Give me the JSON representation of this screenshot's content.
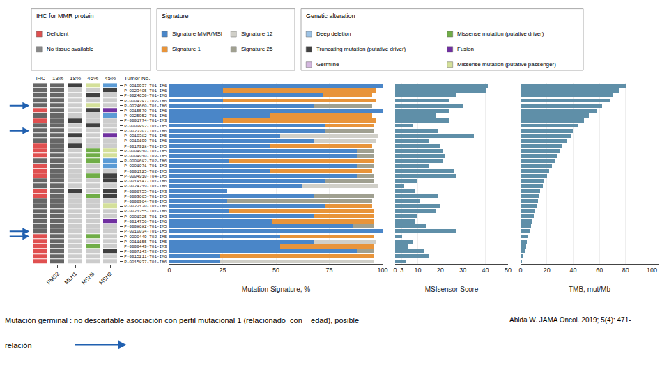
{
  "chart_data": [
    {
      "type": "tiles",
      "ylabel": "Tumor No.",
      "categories": [
        "P-0019937-T01-IM6",
        "P-0023405-T01-IM6",
        "P-0024650-T01-IM6",
        "P-0004387-T02-IM6",
        "P-0024660-T01-IM6",
        "P-0015570-T01-IM6",
        "P-0025952-T01-IM6",
        "P-0001774-T01-IM3",
        "P-0009892-T01-IM5",
        "P-0023307-T01-IM6",
        "P-0010382-T01-IM5",
        "P-0019199-T01-IM6",
        "P-0017928-T01-IM5",
        "P-0004910-T01-IM5",
        "P-0004910-T03-IM5",
        "P-0008682-T02-IM6",
        "P-0001071-T01-IM3",
        "P-0001325-T02-IM5",
        "P-0004910-T04-IM5",
        "P-0018147-T01-IM6",
        "P-0024219-T01-IM6",
        "P-0000755-T01-IM3",
        "P-0003665-T01-IM5",
        "P-0000964-T03-IM5",
        "P-0022120-T01-IM6",
        "P-0021355-T01-IM6",
        "P-0001325-T01-IM3",
        "P-0014756-T01-IM6",
        "P-0008682-T01-IM5",
        "P-0010034-T01-IM5",
        "P-0000449-T02-IM5",
        "P-0011155-T01-IM5",
        "P-0000449-T01-IM3",
        "P-0007143-T02-IM5",
        "P-0015211-T01-IM6",
        "P-0015837-T01-IM6"
      ],
      "columns": [
        {
          "name": "IHC",
          "label": null,
          "colors": [
            "#666666",
            "#666666",
            "#666666",
            "#666666",
            "#666666",
            "#e05050",
            "#666666",
            "#e05050",
            "#666666",
            "#666666",
            "#666666",
            "#666666",
            "#e05050",
            "#e05050",
            "#e05050",
            "#666666",
            "#e05050",
            "#e05050",
            "#e05050",
            "#666666",
            "#666666",
            "#e05050",
            "#e05050",
            "#666666",
            "#666666",
            "#666666",
            "#666666",
            "#666666",
            "#666666",
            "#666666",
            "#e05050",
            "#e05050",
            "#e05050",
            "#e05050",
            "#e05050",
            "#e05050"
          ]
        },
        {
          "name": "13%",
          "label": "PMS2",
          "colors": [
            "#666666",
            "#666666",
            "#666666",
            "#666666",
            "#666666",
            "#666666",
            "#666666",
            "#666666",
            "#666666",
            "#666666",
            "#666666",
            "#666666",
            "#666666",
            "#666666",
            "#666666",
            "#666666",
            "#666666",
            "#666666",
            "#666666",
            "#666666",
            "#666666",
            "#666666",
            "#666666",
            "#666666",
            "#666666",
            "#666666",
            "#666666",
            "#666666",
            "#666666",
            "#666666",
            "#666666",
            "#666666",
            "#666666",
            "#666666",
            "#666666",
            "#666666"
          ]
        },
        {
          "name": "18%",
          "label": "MLH1",
          "colors": [
            "#404040",
            "#cccccc",
            "#cccccc",
            "#cccccc",
            "#cccccc",
            "#cccccc",
            "#cccccc",
            "#404040",
            "#cccccc",
            "#cccccc",
            "#404040",
            "#cccccc",
            "#404040",
            "#cccccc",
            "#cccccc",
            "#cccccc",
            "#cccccc",
            "#cccccc",
            "#cccccc",
            "#cccccc",
            "#cccccc",
            "#404040",
            "#cccccc",
            "#cccccc",
            "#cccccc",
            "#cccccc",
            "#cccccc",
            "#cccccc",
            "#cccccc",
            "#cccccc",
            "#cccccc",
            "#cccccc",
            "#cccccc",
            "#cccccc",
            "#cccccc",
            "#cccccc"
          ]
        },
        {
          "name": "46%",
          "label": "MSH6",
          "colors": [
            "#d4e09a",
            "#cccccc",
            "#404040",
            "#cccccc",
            "#d4e09a",
            "#404040",
            "#cccccc",
            "#cccccc",
            "#404040",
            "#cccccc",
            "#cccccc",
            "#cccccc",
            "#cccccc",
            "#70ad47",
            "#70ad47",
            "#70ad47",
            "#cccccc",
            "#cccccc",
            "#70ad47",
            "#cccccc",
            "#cccccc",
            "#cccccc",
            "#70ad47",
            "#cccccc",
            "#cccccc",
            "#cccccc",
            "#cccccc",
            "#cccccc",
            "#cccccc",
            "#cccccc",
            "#70ad47",
            "#cccccc",
            "#70ad47",
            "#cccccc",
            "#cccccc",
            "#cccccc"
          ]
        },
        {
          "name": "45%",
          "label": "MSH2",
          "colors": [
            "#5b9bd5",
            "#404040",
            "#cccccc",
            "#cccccc",
            "#cccccc",
            "#7030a0",
            "#5b9bd5",
            "#cccccc",
            "#cccccc",
            "#cccccc",
            "#7030a0",
            "#cccccc",
            "#cccccc",
            "#d4e09a",
            "#d4e09a",
            "#5b9bd5",
            "#5b9bd5",
            "#cccccc",
            "#404040",
            "#404040",
            "#cccccc",
            "#404040",
            "#404040",
            "#cccccc",
            "#d4e09a",
            "#cccccc",
            "#cccccc",
            "#7030a0",
            "#cccccc",
            "#cccccc",
            "#cccccc",
            "#cccccc",
            "#cccccc",
            "#404040",
            "#cccccc",
            "#cccccc"
          ]
        }
      ],
      "key": [
        {
          "title": "IHC for MMR protein",
          "items": [
            {
              "name": "Deficient",
              "color": "#e05050"
            },
            {
              "name": "No tissue available",
              "color": "#888888"
            }
          ]
        },
        {
          "title": "Genetic alteration",
          "items": [
            {
              "name": "Deep deletion",
              "color": "#9dc3e6"
            },
            {
              "name": "Truncating mutation (putative driver)",
              "color": "#404040"
            },
            {
              "name": "Germline",
              "color": "#d5b8e0"
            },
            {
              "name": "Missense mutation (putative driver)",
              "color": "#70ad47"
            },
            {
              "name": "Fusion",
              "color": "#7030a0"
            },
            {
              "name": "Missense mutation (putative passenger)",
              "color": "#d4e09a"
            }
          ]
        }
      ],
      "arrows": {
        "rows": [
          "P-0024660-T01-IM6",
          "P-0023307-T01-IM6",
          "P-0010034-T01-IM5",
          "P-0000449-T02-IM5"
        ],
        "color": "#2060b0"
      },
      "annotations": [
        "Mutación germinal : no descartable asociación con perfil mutacional 1 (relacionado  con    edad), posible",
        "relación",
        "Abida W. JAMA Oncol. 2019; 5(4): 471-"
      ]
    },
    {
      "type": "bar",
      "orientation": "horizontal",
      "stacked": true,
      "tick_labels": "x",
      "grid": true,
      "xlabel": "Mutation Signature, %",
      "legend_title": "Signature",
      "categories": [
        "P-0019937-T01-IM6",
        "P-0023405-T01-IM6",
        "P-0024650-T01-IM6",
        "P-0004387-T02-IM6",
        "P-0024660-T01-IM6",
        "P-0015570-T01-IM6",
        "P-0025952-T01-IM6",
        "P-0001774-T01-IM3",
        "P-0009892-T01-IM5",
        "P-0023307-T01-IM6",
        "P-0010382-T01-IM5",
        "P-0019199-T01-IM6",
        "P-0017928-T01-IM5",
        "P-0004910-T01-IM5",
        "P-0004910-T03-IM5",
        "P-0008682-T02-IM6",
        "P-0001071-T01-IM3",
        "P-0001325-T02-IM5",
        "P-0004910-T04-IM5",
        "P-0018147-T01-IM6",
        "P-0024219-T01-IM6",
        "P-0000755-T01-IM3",
        "P-0003665-T01-IM5",
        "P-0000964-T03-IM5",
        "P-0022120-T01-IM6",
        "P-0021355-T01-IM6",
        "P-0001325-T01-IM3",
        "P-0014756-T01-IM6",
        "P-0008682-T01-IM5",
        "P-0010034-T01-IM5",
        "P-0000449-T02-IM5",
        "P-0011155-T01-IM5",
        "P-0000449-T01-IM3",
        "P-0007143-T02-IM5",
        "P-0015211-T01-IM6",
        "P-0015837-T01-IM6"
      ],
      "series": [
        {
          "name": "Signature MMR/MSI",
          "color": "#4a86c8",
          "values": [
            100,
            25,
            72,
            25,
            68,
            100,
            47,
            25,
            73,
            73,
            52,
            68,
            47,
            88,
            88,
            28,
            88,
            47,
            88,
            73,
            62,
            27,
            68,
            27,
            73,
            28,
            68,
            48,
            86,
            100,
            52,
            68,
            52,
            88,
            24,
            24
          ]
        },
        {
          "name": "Signature 1",
          "color": "#e8943a",
          "values": [
            0,
            72,
            23,
            72,
            0,
            0,
            48,
            72,
            23,
            0,
            0,
            0,
            48,
            0,
            0,
            68,
            0,
            48,
            0,
            0,
            0,
            0,
            0,
            0,
            22,
            68,
            28,
            48,
            0,
            0,
            44,
            0,
            44,
            0,
            72,
            0
          ]
        },
        {
          "name": "Signature 12",
          "color": "#d0cfc8",
          "values": [
            0,
            0,
            0,
            0,
            0,
            0,
            0,
            0,
            0,
            0,
            46,
            29,
            0,
            0,
            0,
            0,
            0,
            0,
            0,
            0,
            36,
            0,
            0,
            0,
            0,
            0,
            0,
            0,
            0,
            0,
            0,
            29,
            0,
            0,
            0,
            72
          ]
        },
        {
          "name": "Signature 25",
          "color": "#a0a090",
          "values": [
            0,
            0,
            0,
            0,
            27,
            0,
            0,
            0,
            0,
            23,
            0,
            0,
            0,
            8,
            8,
            0,
            8,
            0,
            8,
            23,
            0,
            0,
            28,
            68,
            0,
            0,
            0,
            0,
            10,
            0,
            0,
            0,
            0,
            8,
            0,
            0
          ]
        }
      ],
      "xlim": [
        0,
        100
      ],
      "xticks": [
        0,
        25,
        50,
        75,
        100
      ]
    },
    {
      "type": "bar",
      "orientation": "horizontal",
      "tick_labels": "x",
      "grid": true,
      "xlabel": "MSIsensor Score",
      "categories": [
        "P-0019937-T01-IM6",
        "P-0023405-T01-IM6",
        "P-0024650-T01-IM6",
        "P-0004387-T02-IM6",
        "P-0024660-T01-IM6",
        "P-0015570-T01-IM6",
        "P-0025952-T01-IM6",
        "P-0001774-T01-IM3",
        "P-0009892-T01-IM5",
        "P-0023307-T01-IM6",
        "P-0010382-T01-IM5",
        "P-0019199-T01-IM6",
        "P-0017928-T01-IM5",
        "P-0004910-T01-IM5",
        "P-0004910-T03-IM5",
        "P-0008682-T02-IM6",
        "P-0001071-T01-IM3",
        "P-0001325-T02-IM5",
        "P-0004910-T04-IM5",
        "P-0018147-T01-IM6",
        "P-0024219-T01-IM6",
        "P-0000755-T01-IM3",
        "P-0003665-T01-IM5",
        "P-0000964-T03-IM5",
        "P-0022120-T01-IM6",
        "P-0021355-T01-IM6",
        "P-0001325-T01-IM3",
        "P-0014756-T01-IM6",
        "P-0008682-T01-IM5",
        "P-0010034-T01-IM5",
        "P-0000449-T02-IM5",
        "P-0011155-T01-IM5",
        "P-0000449-T01-IM3",
        "P-0007143-T02-IM5",
        "P-0015211-T01-IM6",
        "P-0015837-T01-IM6"
      ],
      "values": [
        41,
        40,
        27,
        24,
        30,
        24,
        18,
        24,
        8,
        19,
        35,
        15,
        20,
        21,
        22,
        21,
        15,
        26,
        27,
        10,
        4,
        9,
        19,
        11,
        20,
        18,
        10,
        9,
        14,
        27,
        3,
        8,
        6,
        13,
        15,
        5
      ],
      "color": "#5f8fa8",
      "xlim": [
        0,
        50
      ],
      "xticks": [
        0,
        3,
        10,
        20,
        30,
        40,
        50
      ]
    },
    {
      "type": "bar",
      "orientation": "horizontal",
      "tick_labels": "x",
      "grid": true,
      "xlabel": "TMB, mut/Mb",
      "categories": [
        "P-0019937-T01-IM6",
        "P-0023405-T01-IM6",
        "P-0024650-T01-IM6",
        "P-0004387-T02-IM6",
        "P-0024660-T01-IM6",
        "P-0015570-T01-IM6",
        "P-0025952-T01-IM6",
        "P-0001774-T01-IM3",
        "P-0009892-T01-IM5",
        "P-0023307-T01-IM6",
        "P-0010382-T01-IM5",
        "P-0019199-T01-IM6",
        "P-0017928-T01-IM5",
        "P-0004910-T01-IM5",
        "P-0004910-T03-IM5",
        "P-0008682-T02-IM6",
        "P-0001071-T01-IM3",
        "P-0001325-T02-IM5",
        "P-0004910-T04-IM5",
        "P-0018147-T01-IM6",
        "P-0024219-T01-IM6",
        "P-0000755-T01-IM3",
        "P-0003665-T01-IM5",
        "P-0000964-T03-IM5",
        "P-0022120-T01-IM6",
        "P-0021355-T01-IM6",
        "P-0001325-T01-IM3",
        "P-0014756-T01-IM6",
        "P-0008682-T01-IM5",
        "P-0010034-T01-IM5",
        "P-0000449-T02-IM5",
        "P-0011155-T01-IM5",
        "P-0000449-T01-IM3",
        "P-0007143-T02-IM5",
        "P-0015211-T01-IM6",
        "P-0015837-T01-IM6"
      ],
      "values": [
        80,
        75,
        70,
        68,
        62,
        58,
        52,
        48,
        44,
        40,
        38,
        35,
        32,
        30,
        28,
        26,
        24,
        22,
        20,
        18,
        17,
        15,
        14,
        13,
        12,
        11,
        10,
        9,
        8,
        7,
        6,
        5,
        4,
        3,
        2,
        1
      ],
      "color": "#5f8fa8",
      "xlim": [
        0,
        105
      ],
      "xticks": [
        0,
        20,
        40,
        60,
        80,
        100
      ]
    }
  ]
}
